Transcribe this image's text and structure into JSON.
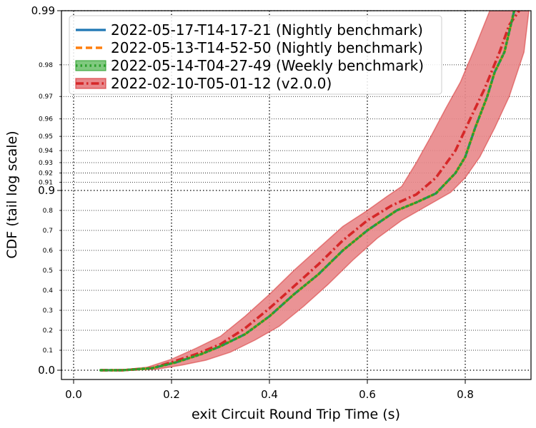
{
  "chart_data": {
    "type": "line",
    "xlabel": "exit Circuit Round Trip Time (s)",
    "ylabel": "CDF (tail log scale)",
    "xlim": [
      -0.03,
      0.93
    ],
    "x_ticks": [
      "0.0",
      "0.2",
      "0.4",
      "0.6",
      "0.8"
    ],
    "y_scale": "tail-log",
    "y_major_ticks": [
      "0.0",
      "0.9",
      "0.99"
    ],
    "y_minor_ticks": [
      "0.1",
      "0.2",
      "0.3",
      "0.4",
      "0.5",
      "0.6",
      "0.7",
      "0.8",
      "0.91",
      "0.92",
      "0.93",
      "0.94",
      "0.95",
      "0.96",
      "0.97",
      "0.98"
    ],
    "grid": true,
    "legend_position": "top-left",
    "series": [
      {
        "name": "2022-05-17-T14-17-21 (Nightly benchmark)",
        "color": "#1f77b4",
        "style": "solid",
        "points": [
          [
            0.055,
            0.0
          ],
          [
            0.1,
            0.0
          ],
          [
            0.16,
            0.01
          ],
          [
            0.21,
            0.04
          ],
          [
            0.26,
            0.08
          ],
          [
            0.3,
            0.12
          ],
          [
            0.35,
            0.18
          ],
          [
            0.4,
            0.27
          ],
          [
            0.45,
            0.38
          ],
          [
            0.5,
            0.48
          ],
          [
            0.55,
            0.6
          ],
          [
            0.6,
            0.7
          ],
          [
            0.63,
            0.75
          ],
          [
            0.66,
            0.8
          ],
          [
            0.7,
            0.84
          ],
          [
            0.74,
            0.885
          ],
          [
            0.78,
            0.92
          ],
          [
            0.8,
            0.935
          ],
          [
            0.82,
            0.955
          ],
          [
            0.845,
            0.97
          ],
          [
            0.86,
            0.978
          ],
          [
            0.88,
            0.983
          ],
          [
            0.9,
            0.99
          ]
        ]
      },
      {
        "name": "2022-05-13-T14-52-50 (Nightly benchmark)",
        "color": "#ff7f0e",
        "style": "dashed",
        "points": [
          [
            0.055,
            0.0
          ],
          [
            0.1,
            0.0
          ],
          [
            0.16,
            0.01
          ],
          [
            0.21,
            0.04
          ],
          [
            0.26,
            0.08
          ],
          [
            0.3,
            0.12
          ],
          [
            0.35,
            0.18
          ],
          [
            0.4,
            0.27
          ],
          [
            0.45,
            0.38
          ],
          [
            0.5,
            0.48
          ],
          [
            0.55,
            0.6
          ],
          [
            0.6,
            0.7
          ],
          [
            0.63,
            0.75
          ],
          [
            0.66,
            0.8
          ],
          [
            0.7,
            0.84
          ],
          [
            0.74,
            0.885
          ],
          [
            0.78,
            0.92
          ],
          [
            0.8,
            0.935
          ],
          [
            0.82,
            0.955
          ],
          [
            0.845,
            0.97
          ],
          [
            0.86,
            0.978
          ],
          [
            0.88,
            0.983
          ],
          [
            0.9,
            0.99
          ]
        ]
      },
      {
        "name": "2022-05-14-T04-27-49 (Weekly benchmark)",
        "color": "#2ca02c",
        "style": "dotted",
        "points": [
          [
            0.055,
            0.0
          ],
          [
            0.1,
            0.0
          ],
          [
            0.16,
            0.01
          ],
          [
            0.21,
            0.04
          ],
          [
            0.26,
            0.08
          ],
          [
            0.3,
            0.12
          ],
          [
            0.35,
            0.18
          ],
          [
            0.4,
            0.27
          ],
          [
            0.45,
            0.38
          ],
          [
            0.5,
            0.48
          ],
          [
            0.55,
            0.6
          ],
          [
            0.6,
            0.7
          ],
          [
            0.63,
            0.75
          ],
          [
            0.66,
            0.8
          ],
          [
            0.7,
            0.84
          ],
          [
            0.74,
            0.885
          ],
          [
            0.78,
            0.92
          ],
          [
            0.8,
            0.935
          ],
          [
            0.82,
            0.955
          ],
          [
            0.845,
            0.97
          ],
          [
            0.86,
            0.978
          ],
          [
            0.88,
            0.983
          ],
          [
            0.9,
            0.99
          ]
        ]
      },
      {
        "name": "2022-02-10-T05-01-12 (v2.0.0)",
        "color": "#d62728",
        "style": "dashdot",
        "band_color": "#e8878a",
        "points": [
          [
            0.055,
            0.0
          ],
          [
            0.1,
            0.0
          ],
          [
            0.16,
            0.01
          ],
          [
            0.2,
            0.04
          ],
          [
            0.25,
            0.08
          ],
          [
            0.3,
            0.13
          ],
          [
            0.35,
            0.21
          ],
          [
            0.4,
            0.31
          ],
          [
            0.45,
            0.42
          ],
          [
            0.5,
            0.53
          ],
          [
            0.55,
            0.65
          ],
          [
            0.6,
            0.75
          ],
          [
            0.65,
            0.825
          ],
          [
            0.7,
            0.88
          ],
          [
            0.74,
            0.915
          ],
          [
            0.78,
            0.94
          ],
          [
            0.81,
            0.96
          ],
          [
            0.84,
            0.973
          ],
          [
            0.87,
            0.983
          ],
          [
            0.89,
            0.988
          ],
          [
            0.91,
            0.99
          ]
        ],
        "band_lower": [
          [
            0.055,
            0.0
          ],
          [
            0.1,
            0.0
          ],
          [
            0.17,
            0.005
          ],
          [
            0.22,
            0.025
          ],
          [
            0.27,
            0.05
          ],
          [
            0.32,
            0.09
          ],
          [
            0.37,
            0.15
          ],
          [
            0.42,
            0.22
          ],
          [
            0.47,
            0.32
          ],
          [
            0.52,
            0.43
          ],
          [
            0.57,
            0.55
          ],
          [
            0.62,
            0.66
          ],
          [
            0.67,
            0.75
          ],
          [
            0.72,
            0.82
          ],
          [
            0.77,
            0.89
          ],
          [
            0.8,
            0.915
          ],
          [
            0.83,
            0.935
          ],
          [
            0.86,
            0.955
          ],
          [
            0.89,
            0.97
          ],
          [
            0.92,
            0.983
          ],
          [
            0.93,
            0.99
          ]
        ],
        "band_upper": [
          [
            0.055,
            0.0
          ],
          [
            0.1,
            0.002
          ],
          [
            0.15,
            0.015
          ],
          [
            0.2,
            0.055
          ],
          [
            0.25,
            0.11
          ],
          [
            0.3,
            0.17
          ],
          [
            0.35,
            0.27
          ],
          [
            0.4,
            0.38
          ],
          [
            0.45,
            0.5
          ],
          [
            0.5,
            0.61
          ],
          [
            0.55,
            0.72
          ],
          [
            0.6,
            0.8
          ],
          [
            0.64,
            0.87
          ],
          [
            0.67,
            0.905
          ],
          [
            0.7,
            0.93
          ],
          [
            0.73,
            0.95
          ],
          [
            0.76,
            0.965
          ],
          [
            0.79,
            0.975
          ],
          [
            0.82,
            0.984
          ],
          [
            0.85,
            0.99
          ]
        ]
      }
    ]
  }
}
